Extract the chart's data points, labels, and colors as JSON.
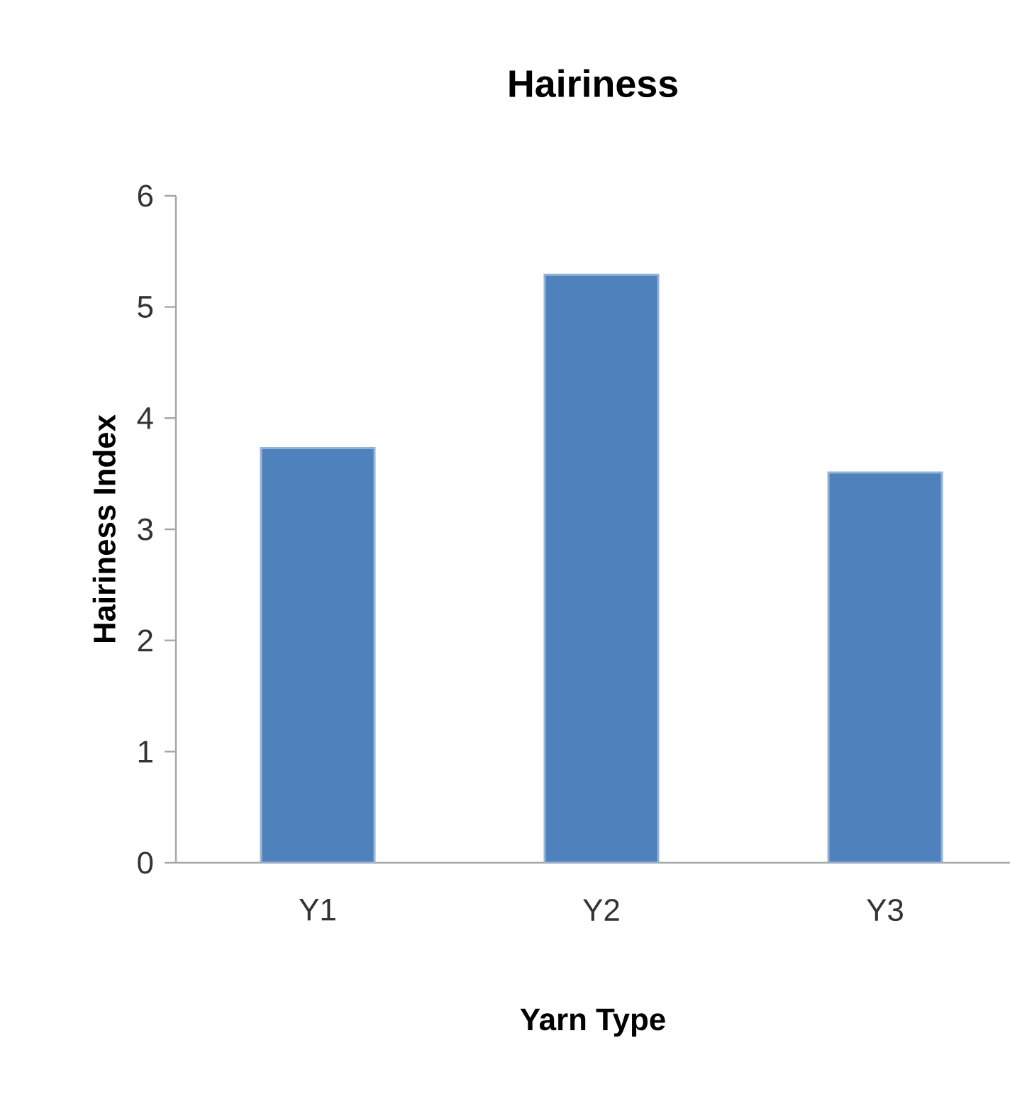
{
  "chart_data": {
    "type": "bar",
    "title": "Hairiness",
    "xlabel": "Yarn Type",
    "ylabel": "Hairiness Index",
    "categories": [
      "Y1",
      "Y2",
      "Y3"
    ],
    "values": [
      3.73,
      5.29,
      3.51
    ],
    "color": "#4f81bd",
    "ylim": [
      0,
      6
    ],
    "yticks": [
      0,
      1,
      2,
      3,
      4,
      5,
      6
    ],
    "grid": false
  }
}
